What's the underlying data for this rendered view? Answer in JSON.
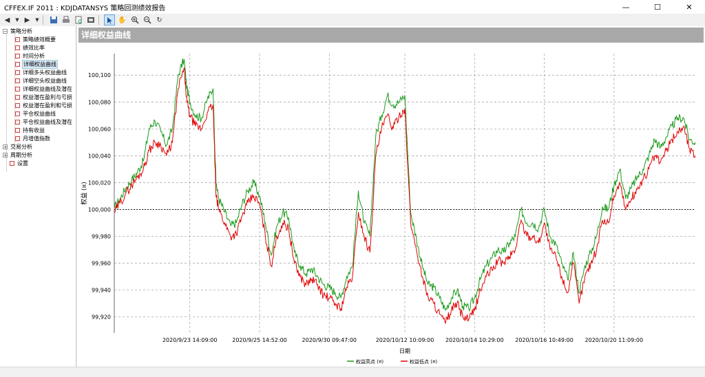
{
  "window": {
    "title": "CFFEX.IF 2011 : KDJDATANSYS 策略回测绩效报告",
    "controls": [
      "—",
      "☐",
      "✕"
    ]
  },
  "toolbar": {
    "icons": [
      "back-icon",
      "forward-icon",
      "save-icon",
      "print-icon",
      "print-preview-icon",
      "pointer-icon",
      "hand-icon",
      "zoom-in-icon",
      "zoom-out-icon",
      "refresh-icon"
    ]
  },
  "sidebar": {
    "root": [
      {
        "label": "策略分析",
        "expanded": true,
        "children": [
          "策略绩效概要",
          "绩效比率",
          "时间分析",
          "详细权益曲线",
          "详细多头权益曲线",
          "详细空头权益曲线",
          "详细权益曲线及潜在",
          "权益潜在盈利与亏损",
          "权益潜在盈利和亏损",
          "平仓权益曲线",
          "平仓权益曲线及潜在",
          "持有收益",
          "月增值指数"
        ]
      },
      {
        "label": "交易分析",
        "expanded": false
      },
      {
        "label": "周期分析",
        "expanded": false
      },
      {
        "label": "设置",
        "expanded": false
      }
    ],
    "selected": "详细权益曲线"
  },
  "panel": {
    "header": "详细权益曲线"
  },
  "chart_data": {
    "type": "line",
    "title": "详细权益曲线",
    "xlabel": "日期",
    "ylabel": "权益 (¤)",
    "ylim": [
      99908,
      100116
    ],
    "yticks": [
      99920,
      99940,
      99960,
      99980,
      100000,
      100020,
      100040,
      100060,
      100080,
      100100
    ],
    "ytick_labels": [
      "99,920",
      "99,940",
      "99,960",
      "99,980",
      "100,000",
      "100,020",
      "100,040",
      "100,060",
      "100,080",
      "100,100"
    ],
    "xticks": [
      "2020/9/23 14:09:00",
      "2020/9/25 14:52:00",
      "2020/9/30 09:47:00",
      "2020/10/12 10:09:00",
      "2020/10/14 10:29:00",
      "2020/10/16 10:49:00",
      "2020/10/20 11:09:00"
    ],
    "xtick_positions": [
      0.13,
      0.25,
      0.37,
      0.5,
      0.62,
      0.74,
      0.86
    ],
    "reference_line": 100000,
    "grid": true,
    "legend_position": "bottom-center",
    "series": [
      {
        "name": "权益高点 (¤)",
        "color": "#1a9a1a"
      },
      {
        "name": "权益低点 (¤)",
        "color": "#e00000"
      }
    ],
    "x": [
      0,
      0.01,
      0.02,
      0.03,
      0.04,
      0.05,
      0.06,
      0.07,
      0.08,
      0.09,
      0.1,
      0.11,
      0.12,
      0.125,
      0.13,
      0.14,
      0.15,
      0.16,
      0.17,
      0.175,
      0.18,
      0.19,
      0.2,
      0.21,
      0.22,
      0.23,
      0.24,
      0.25,
      0.26,
      0.27,
      0.28,
      0.29,
      0.3,
      0.31,
      0.32,
      0.33,
      0.34,
      0.35,
      0.36,
      0.37,
      0.38,
      0.39,
      0.4,
      0.41,
      0.42,
      0.43,
      0.44,
      0.45,
      0.46,
      0.47,
      0.48,
      0.49,
      0.5,
      0.51,
      0.52,
      0.53,
      0.54,
      0.55,
      0.56,
      0.57,
      0.58,
      0.59,
      0.6,
      0.61,
      0.62,
      0.63,
      0.64,
      0.65,
      0.66,
      0.67,
      0.68,
      0.69,
      0.7,
      0.71,
      0.72,
      0.73,
      0.74,
      0.75,
      0.76,
      0.77,
      0.78,
      0.79,
      0.8,
      0.81,
      0.82,
      0.83,
      0.84,
      0.85,
      0.86,
      0.87,
      0.88,
      0.89,
      0.9,
      0.91,
      0.92,
      0.93,
      0.94,
      0.95,
      0.96,
      0.97,
      0.98,
      0.99,
      1
    ],
    "low": [
      99998,
      100005,
      100012,
      100018,
      100024,
      100030,
      100044,
      100050,
      100048,
      100040,
      100050,
      100090,
      100105,
      100080,
      100070,
      100062,
      100060,
      100072,
      100078,
      100010,
      100000,
      99990,
      99980,
      99982,
      99995,
      100005,
      100010,
      100004,
      99980,
      99958,
      99980,
      99990,
      99986,
      99960,
      99950,
      99944,
      99948,
      99944,
      99936,
      99934,
      99930,
      99926,
      99942,
      99950,
      99998,
      99980,
      99968,
      100040,
      100060,
      100070,
      100060,
      100070,
      100075,
      99990,
      99970,
      99950,
      99935,
      99930,
      99922,
      99915,
      99925,
      99930,
      99920,
      99918,
      99925,
      99940,
      99950,
      99955,
      99962,
      99960,
      99965,
      99970,
      99992,
      99980,
      99980,
      99975,
      99990,
      99970,
      99965,
      99950,
      99938,
      99960,
      99930,
      99950,
      99960,
      99970,
      99992,
      99990,
      100010,
      100020,
      100000,
      100008,
      100015,
      100022,
      100030,
      100040,
      100035,
      100044,
      100052,
      100058,
      100062,
      100045,
      100040
    ],
    "high": [
      100001,
      100008,
      100016,
      100022,
      100028,
      100036,
      100060,
      100066,
      100058,
      100048,
      100060,
      100100,
      100112,
      100090,
      100080,
      100070,
      100068,
      100082,
      100090,
      100020,
      100008,
      99998,
      99988,
      99990,
      100004,
      100014,
      100020,
      100010,
      99990,
      99966,
      99988,
      99998,
      99994,
      99968,
      99958,
      99952,
      99956,
      99950,
      99944,
      99942,
      99938,
      99934,
      99950,
      99958,
      100014,
      99990,
      99980,
      100055,
      100070,
      100085,
      100078,
      100080,
      100085,
      99998,
      99978,
      99958,
      99944,
      99942,
      99934,
      99925,
      99934,
      99940,
      99928,
      99926,
      99934,
      99948,
      99958,
      99964,
      99970,
      99968,
      99975,
      99980,
      100000,
      99990,
      99990,
      99986,
      100000,
      99980,
      99974,
      99960,
      99948,
      99968,
      99938,
      99958,
      99968,
      99980,
      100002,
      100000,
      100018,
      100030,
      100008,
      100016,
      100024,
      100030,
      100040,
      100052,
      100046,
      100054,
      100062,
      100068,
      100068,
      100052,
      100050
    ]
  }
}
